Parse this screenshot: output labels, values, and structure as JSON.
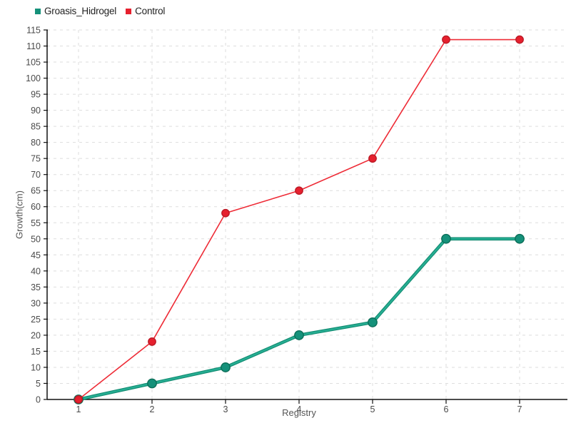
{
  "chart_data": {
    "type": "line",
    "x": [
      1,
      2,
      3,
      4,
      5,
      6,
      7
    ],
    "xticks": [
      "1",
      "2",
      "3",
      "4",
      "5",
      "6",
      "7"
    ],
    "series": [
      {
        "name": "Groasis_Hidrogel",
        "values": [
          0,
          5,
          10,
          20,
          24,
          50,
          50
        ],
        "line_color": "#108a70",
        "line_highlight": "#27ae93",
        "line_width": 4.6,
        "marker_color": "#15917a",
        "marker_stroke": "#0b6e58",
        "marker_radius": 6.2
      },
      {
        "name": "Control",
        "values": [
          0,
          18,
          58,
          65,
          75,
          112,
          112
        ],
        "line_color": "#ee2b36",
        "line_highlight": "",
        "line_width": 1.6,
        "marker_color": "#e6202e",
        "marker_stroke": "#bb1a26",
        "marker_radius": 5.2
      }
    ],
    "title": "",
    "xlabel": "Registry",
    "ylabel": "Growth(cm)",
    "ylim": [
      0,
      115
    ],
    "ytick_step": 5,
    "grid": true,
    "legend_position": "top-left",
    "colors": {
      "grid": "#dedede",
      "axis": "#111111",
      "tick_label": "#4a4a4a",
      "axis_label": "#555555",
      "legend_text": "#222222",
      "background": "#ffffff"
    }
  }
}
